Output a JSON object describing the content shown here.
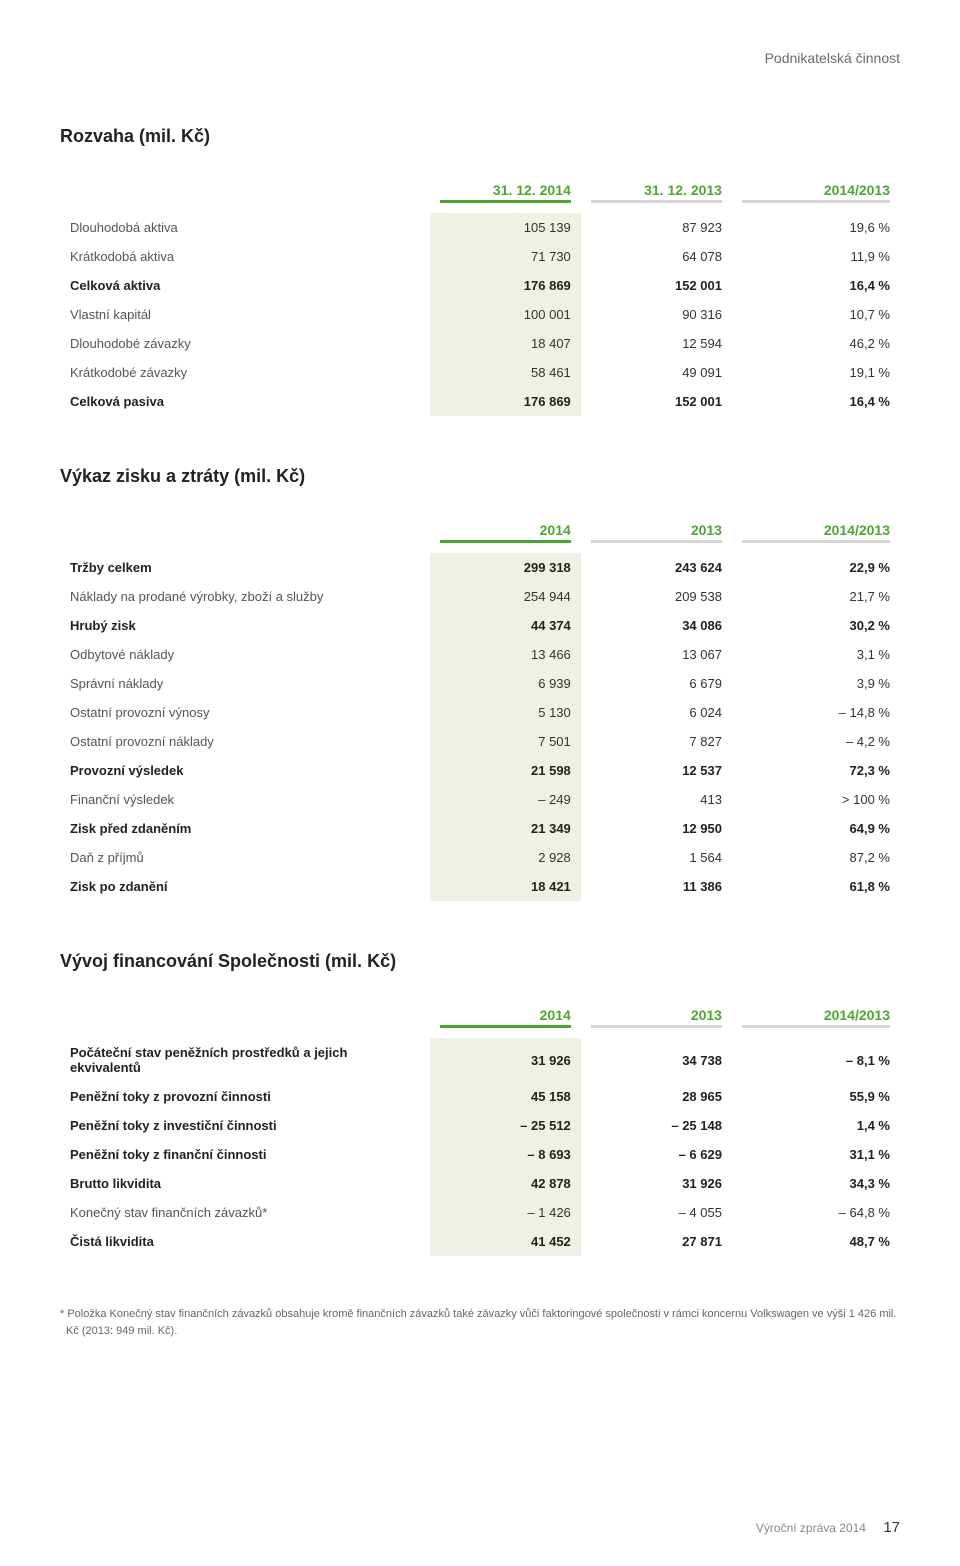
{
  "section_header": "Podnikatelská činnost",
  "footer": {
    "label": "Výroční zpráva 2014",
    "page": "17"
  },
  "table1": {
    "title": "Rozvaha (mil. Kč)",
    "columns": [
      "31. 12. 2014",
      "31. 12. 2013",
      "2014/2013"
    ],
    "rows": [
      {
        "label": "Dlouhodobá aktiva",
        "a": "105 139",
        "b": "87 923",
        "c": "19,6 %",
        "bold": false
      },
      {
        "label": "Krátkodobá aktiva",
        "a": "71 730",
        "b": "64 078",
        "c": "11,9 %",
        "bold": false
      },
      {
        "label": "Celková aktiva",
        "a": "176 869",
        "b": "152 001",
        "c": "16,4 %",
        "bold": true
      },
      {
        "label": "Vlastní kapitál",
        "a": "100 001",
        "b": "90 316",
        "c": "10,7 %",
        "bold": false
      },
      {
        "label": "Dlouhodobé závazky",
        "a": "18 407",
        "b": "12 594",
        "c": "46,2 %",
        "bold": false
      },
      {
        "label": "Krátkodobé závazky",
        "a": "58 461",
        "b": "49 091",
        "c": "19,1 %",
        "bold": false
      },
      {
        "label": "Celková pasiva",
        "a": "176 869",
        "b": "152 001",
        "c": "16,4 %",
        "bold": true
      }
    ]
  },
  "table2": {
    "title": "Výkaz zisku a ztráty (mil. Kč)",
    "columns": [
      "2014",
      "2013",
      "2014/2013"
    ],
    "rows": [
      {
        "label": "Tržby celkem",
        "a": "299 318",
        "b": "243 624",
        "c": "22,9 %",
        "bold": true
      },
      {
        "label": "Náklady na prodané výrobky, zboží a služby",
        "a": "254 944",
        "b": "209 538",
        "c": "21,7 %",
        "bold": false
      },
      {
        "label": "Hrubý zisk",
        "a": "44 374",
        "b": "34 086",
        "c": "30,2 %",
        "bold": true
      },
      {
        "label": "Odbytové náklady",
        "a": "13 466",
        "b": "13 067",
        "c": "3,1 %",
        "bold": false
      },
      {
        "label": "Správní náklady",
        "a": "6 939",
        "b": "6 679",
        "c": "3,9 %",
        "bold": false
      },
      {
        "label": "Ostatní provozní výnosy",
        "a": "5 130",
        "b": "6 024",
        "c": "– 14,8 %",
        "bold": false
      },
      {
        "label": "Ostatní provozní náklady",
        "a": "7 501",
        "b": "7 827",
        "c": "– 4,2 %",
        "bold": false
      },
      {
        "label": "Provozní výsledek",
        "a": "21 598",
        "b": "12 537",
        "c": "72,3 %",
        "bold": true
      },
      {
        "label": "Finanční výsledek",
        "a": "– 249",
        "b": "413",
        "c": "> 100 %",
        "bold": false
      },
      {
        "label": "Zisk před zdaněním",
        "a": "21 349",
        "b": "12 950",
        "c": "64,9 %",
        "bold": true
      },
      {
        "label": "Daň z příjmů",
        "a": "2 928",
        "b": "1 564",
        "c": "87,2 %",
        "bold": false
      },
      {
        "label": "Zisk po zdanění",
        "a": "18 421",
        "b": "11 386",
        "c": "61,8 %",
        "bold": true
      }
    ]
  },
  "table3": {
    "title": "Vývoj financování Společnosti (mil. Kč)",
    "columns": [
      "2014",
      "2013",
      "2014/2013"
    ],
    "rows": [
      {
        "label": "Počáteční stav peněžních prostředků a jejich ekvivalentů",
        "a": "31 926",
        "b": "34 738",
        "c": "– 8,1 %",
        "bold": true
      },
      {
        "label": "Peněžní toky z provozní činnosti",
        "a": "45 158",
        "b": "28 965",
        "c": "55,9 %",
        "bold": true
      },
      {
        "label": "Peněžní toky z investiční činnosti",
        "a": "– 25 512",
        "b": "– 25 148",
        "c": "1,4 %",
        "bold": true
      },
      {
        "label": "Peněžní toky z finanční činnosti",
        "a": "– 8 693",
        "b": "– 6 629",
        "c": "31,1 %",
        "bold": true
      },
      {
        "label": "Brutto likvidita",
        "a": "42 878",
        "b": "31 926",
        "c": "34,3 %",
        "bold": true
      },
      {
        "label": "Konečný stav finančních závazků*",
        "a": "– 1 426",
        "b": "– 4 055",
        "c": "– 64,8 %",
        "bold": false
      },
      {
        "label": "Čistá likvidita",
        "a": "41 452",
        "b": "27 871",
        "c": "48,7 %",
        "bold": true
      }
    ],
    "footnote": "* Položka Konečný stav finančních závazků obsahuje kromě finančních závazků také závazky vůči faktoringové společnosti v rámci koncernu Volkswagen ve výši 1 426 mil. Kč (2013: 949 mil. Kč)."
  },
  "style": {
    "accent_green": "#4ba82e",
    "col_a_bg": "#eef2e4",
    "hr_grey": "#d5d5d5",
    "text_muted": "#555"
  }
}
